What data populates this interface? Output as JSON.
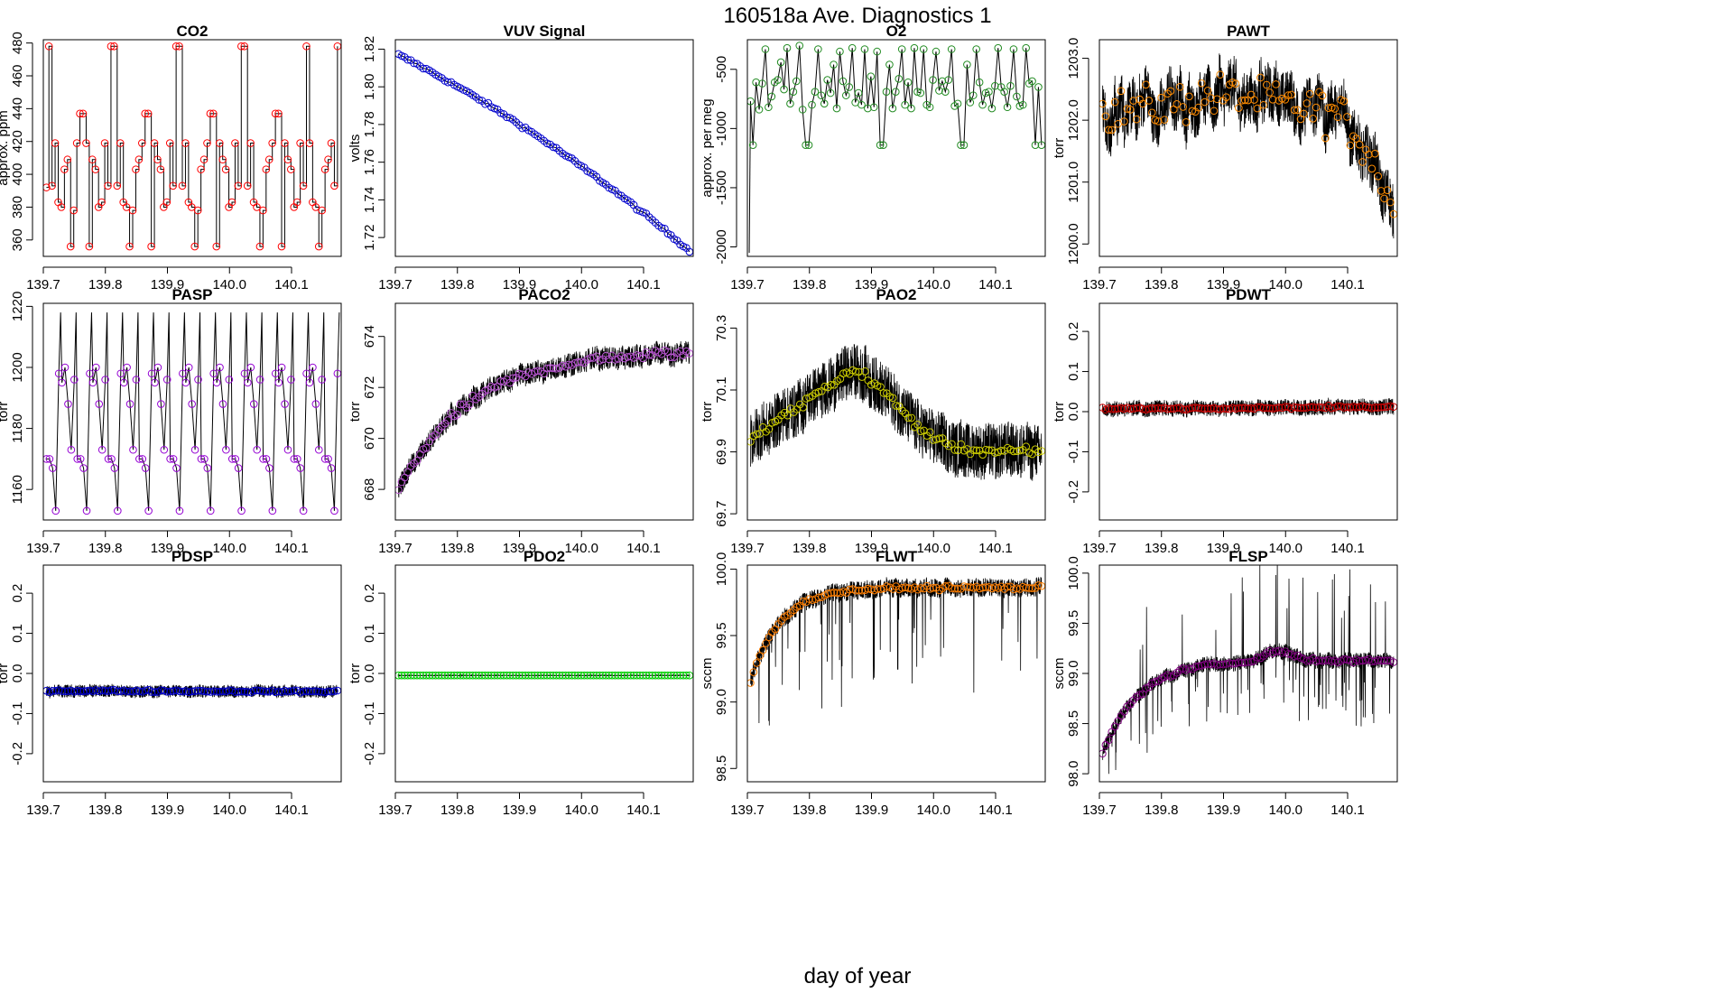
{
  "title": "160518a   Ave. Diagnostics 1",
  "xlabel": "day of year",
  "xlim": [
    139.7,
    140.18
  ],
  "xticks": [
    139.7,
    139.8,
    139.9,
    140.0,
    140.1
  ],
  "xtick_labels": [
    "139.7",
    "139.8",
    "139.9",
    "140.0",
    "140.1"
  ],
  "chart_data": [
    {
      "type": "line",
      "title": "CO2",
      "ylabel": "approx. ppm",
      "ylim": [
        350,
        482
      ],
      "yticks": [
        360,
        380,
        400,
        420,
        440,
        460,
        480
      ],
      "ytick_labels": [
        "360",
        "380",
        "400",
        "420",
        "440",
        "460",
        "480"
      ],
      "marker_color": "#ff0000",
      "line_color": "#000000",
      "x": [
        139.705,
        139.709,
        139.714,
        139.719,
        139.724,
        139.729,
        139.734,
        139.739,
        139.744,
        139.749,
        139.754,
        139.759,
        139.764,
        139.769,
        139.774,
        139.779,
        139.784,
        139.789,
        139.794,
        139.799,
        139.804,
        139.809,
        139.814,
        139.819,
        139.824,
        139.829,
        139.834,
        139.839,
        139.844,
        139.849,
        139.854,
        139.859,
        139.864,
        139.869,
        139.874,
        139.879,
        139.884,
        139.889,
        139.894,
        139.899,
        139.904,
        139.909,
        139.914,
        139.919,
        139.924,
        139.929,
        139.934,
        139.939,
        139.944,
        139.949,
        139.954,
        139.959,
        139.964,
        139.969,
        139.974,
        139.979,
        139.984,
        139.989,
        139.994,
        139.999,
        140.004,
        140.009,
        140.014,
        140.019,
        140.024,
        140.029,
        140.034,
        140.039,
        140.044,
        140.049,
        140.054,
        140.059,
        140.064,
        140.069,
        140.074,
        140.079,
        140.084,
        140.089,
        140.094,
        140.099,
        140.104,
        140.109,
        140.114,
        140.119,
        140.124,
        140.129,
        140.134,
        140.139,
        140.144,
        140.149,
        140.154,
        140.159,
        140.164,
        140.169,
        140.174
      ],
      "values": [
        392,
        478,
        393,
        419,
        383,
        380,
        403,
        409,
        356,
        378,
        419,
        437,
        437,
        419,
        356,
        409,
        403,
        380,
        383,
        419,
        393,
        478,
        478,
        393,
        419,
        383,
        380,
        356,
        378,
        403,
        409,
        419,
        437,
        437,
        356,
        419,
        409,
        403,
        380,
        383,
        419,
        393,
        478,
        478,
        393,
        419,
        383,
        380,
        356,
        378,
        403,
        409,
        419,
        437,
        437,
        356,
        419,
        409,
        403,
        380,
        383,
        419,
        393,
        478,
        478,
        393,
        419,
        383,
        380,
        356,
        378,
        403,
        409,
        419,
        437,
        437,
        356,
        419,
        409,
        403,
        380,
        383,
        419,
        393,
        478,
        419,
        383,
        380,
        356,
        378,
        403,
        409,
        419,
        393,
        478
      ]
    },
    {
      "type": "line",
      "title": "VUV Signal",
      "ylabel": "volts",
      "ylim": [
        1.71,
        1.825
      ],
      "yticks": [
        1.72,
        1.74,
        1.76,
        1.78,
        1.8,
        1.82
      ],
      "ytick_labels": [
        "1.72",
        "1.74",
        "1.76",
        "1.78",
        "1.80",
        "1.82"
      ],
      "marker_color": "#0000cd",
      "start": 1.817,
      "end": 1.713,
      "curve": 0.75,
      "noise": 0.0006
    },
    {
      "type": "line",
      "title": "O2",
      "ylabel": "approx. per meg",
      "ylim": [
        -2080,
        -250
      ],
      "yticks": [
        -2000,
        -1500,
        -1000,
        -500
      ],
      "ytick_labels": [
        "-2000",
        "-1500",
        "-1000",
        "-500"
      ],
      "marker_color": "#228b22",
      "x": [
        139.705,
        139.709,
        139.714,
        139.719,
        139.724,
        139.729,
        139.734,
        139.739,
        139.744,
        139.749,
        139.754,
        139.759,
        139.764,
        139.769,
        139.774,
        139.779,
        139.784,
        139.789,
        139.794,
        139.799,
        139.804,
        139.809,
        139.814,
        139.819,
        139.824,
        139.829,
        139.834,
        139.839,
        139.844,
        139.849,
        139.854,
        139.859,
        139.864,
        139.869,
        139.874,
        139.879,
        139.884,
        139.889,
        139.894,
        139.899,
        139.904,
        139.909,
        139.914,
        139.919,
        139.924,
        139.929,
        139.934,
        139.939,
        139.944,
        139.949,
        139.954,
        139.959,
        139.964,
        139.969,
        139.974,
        139.979,
        139.984,
        139.989,
        139.994,
        139.999,
        140.004,
        140.009,
        140.014,
        140.019,
        140.024,
        140.029,
        140.034,
        140.039,
        140.044,
        140.049,
        140.054,
        140.059,
        140.064,
        140.069,
        140.074,
        140.079,
        140.084,
        140.089,
        140.094,
        140.099,
        140.104,
        140.109,
        140.114,
        140.119,
        140.124,
        140.129,
        140.134,
        140.139,
        140.144,
        140.149,
        140.154,
        140.159,
        140.164,
        140.169,
        140.174
      ],
      "values": [
        -770,
        -1140,
        -610,
        -840,
        -620,
        -330,
        -820,
        -730,
        -610,
        -590,
        -440,
        -670,
        -320,
        -790,
        -690,
        -600,
        -300,
        -840,
        -1140,
        -1140,
        -800,
        -690,
        -330,
        -720,
        -790,
        -590,
        -700,
        -460,
        -830,
        -350,
        -600,
        -720,
        -650,
        -320,
        -780,
        -700,
        -800,
        -330,
        -830,
        -560,
        -820,
        -350,
        -1140,
        -1140,
        -690,
        -460,
        -830,
        -690,
        -580,
        -330,
        -800,
        -610,
        -830,
        -320,
        -690,
        -700,
        -330,
        -800,
        -820,
        -590,
        -350,
        -680,
        -600,
        -690,
        -590,
        -330,
        -810,
        -790,
        -1140,
        -1140,
        -460,
        -780,
        -720,
        -330,
        -610,
        -800,
        -700,
        -690,
        -830,
        -640,
        -320,
        -650,
        -690,
        -820,
        -640,
        -330,
        -730,
        -810,
        -800,
        -320,
        -620,
        -600,
        -1140,
        -650,
        -1140
      ]
    },
    {
      "type": "line",
      "title": "PAWT",
      "ylabel": "torr",
      "ylim": [
        1199.8,
        1203.3
      ],
      "yticks": [
        1200,
        1201,
        1202,
        1203
      ],
      "ytick_labels": [
        "1200.0",
        "1201.0",
        "1202.0",
        "1203.0"
      ],
      "marker_color": "#ff8c00",
      "start": 1202.15,
      "end": 1200.5,
      "bell_center": 0.42,
      "bell_height": 0.25,
      "bell_width": 0.2,
      "decline_start": 0.75,
      "noise": 0.25,
      "raw_noise": 0.45
    },
    {
      "type": "line",
      "title": "PASP",
      "ylabel": "torr",
      "ylim": [
        1150,
        1221
      ],
      "yticks": [
        1160,
        1180,
        1200,
        1220
      ],
      "ytick_labels": [
        "1160",
        "1180",
        "1200",
        "1220"
      ],
      "marker_color": "#9400d3",
      "pattern": [
        1170,
        1170,
        1167,
        1153,
        1198,
        1195,
        1200,
        1188,
        1173,
        1196
      ]
    },
    {
      "type": "line",
      "title": "PACO2",
      "ylabel": "torr",
      "ylim": [
        666.8,
        675.3
      ],
      "yticks": [
        668,
        670,
        672,
        674
      ],
      "ytick_labels": [
        "668",
        "670",
        "672",
        "674"
      ],
      "marker_color": "#ba55d3",
      "start": 668.0,
      "end": 673.45,
      "rate": 4.0,
      "noise": 0.12,
      "raw_noise": 0.45
    },
    {
      "type": "line",
      "title": "PAO2",
      "ylabel": "torr",
      "ylim": [
        69.68,
        70.38
      ],
      "yticks": [
        69.7,
        69.9,
        70.1,
        70.3
      ],
      "ytick_labels": [
        "69.7",
        "69.9",
        "70.1",
        "70.3"
      ],
      "marker_color": "#cdcd00",
      "start": 69.94,
      "peak": 70.16,
      "peak_at": 0.34,
      "end": 69.9,
      "noise": 0.01,
      "raw_noise": 0.09
    },
    {
      "type": "line",
      "title": "PDWT",
      "ylabel": "torr",
      "ylim": [
        -0.27,
        0.27
      ],
      "yticks": [
        -0.2,
        -0.1,
        0.0,
        0.1,
        0.2
      ],
      "ytick_labels": [
        "-0.2",
        "-0.1",
        "0.0",
        "0.1",
        "0.2"
      ],
      "marker_color": "#cd0000",
      "start": 0.007,
      "end": 0.012,
      "noise": 0.002,
      "raw_noise": 0.02
    },
    {
      "type": "line",
      "title": "PDSP",
      "ylabel": "torr",
      "ylim": [
        -0.27,
        0.27
      ],
      "yticks": [
        -0.2,
        -0.1,
        0.0,
        0.1,
        0.2
      ],
      "ytick_labels": [
        "-0.2",
        "-0.1",
        "0.0",
        "0.1",
        "0.2"
      ],
      "marker_color": "#0000cd",
      "start": -0.043,
      "end": -0.045,
      "noise": 0.002,
      "raw_noise": 0.016
    },
    {
      "type": "line",
      "title": "PDO2",
      "ylabel": "torr",
      "ylim": [
        -0.27,
        0.27
      ],
      "yticks": [
        -0.2,
        -0.1,
        0.0,
        0.1,
        0.2
      ],
      "ytick_labels": [
        "-0.2",
        "-0.1",
        "0.0",
        "0.1",
        "0.2"
      ],
      "marker_color": "#00cd00",
      "start": -0.005,
      "end": -0.005,
      "noise": 0.0,
      "raw_noise": 0.001
    },
    {
      "type": "line",
      "title": "FLWT",
      "ylabel": "sccm",
      "ylim": [
        98.4,
        100.03
      ],
      "yticks": [
        98.5,
        99.0,
        99.5,
        100.0
      ],
      "ytick_labels": [
        "98.5",
        "99.0",
        "99.5",
        "100.0"
      ],
      "marker_color": "#ff7f00",
      "start": 99.15,
      "end": 99.86,
      "rate": 10,
      "noise": 0.01,
      "raw_noise": 0.07
    },
    {
      "type": "line",
      "title": "FLSP",
      "ylabel": "sccm",
      "ylim": [
        97.92,
        100.08
      ],
      "yticks": [
        98.0,
        98.5,
        99.0,
        99.5,
        100.0
      ],
      "ytick_labels": [
        "98.0",
        "98.5",
        "99.0",
        "99.5",
        "100.0"
      ],
      "marker_color": "#800080",
      "start": 98.2,
      "end": 99.13,
      "rate": 8,
      "bump_center": 0.6,
      "bump_height": 0.1,
      "noise": 0.015,
      "raw_noise": 0.08
    }
  ]
}
